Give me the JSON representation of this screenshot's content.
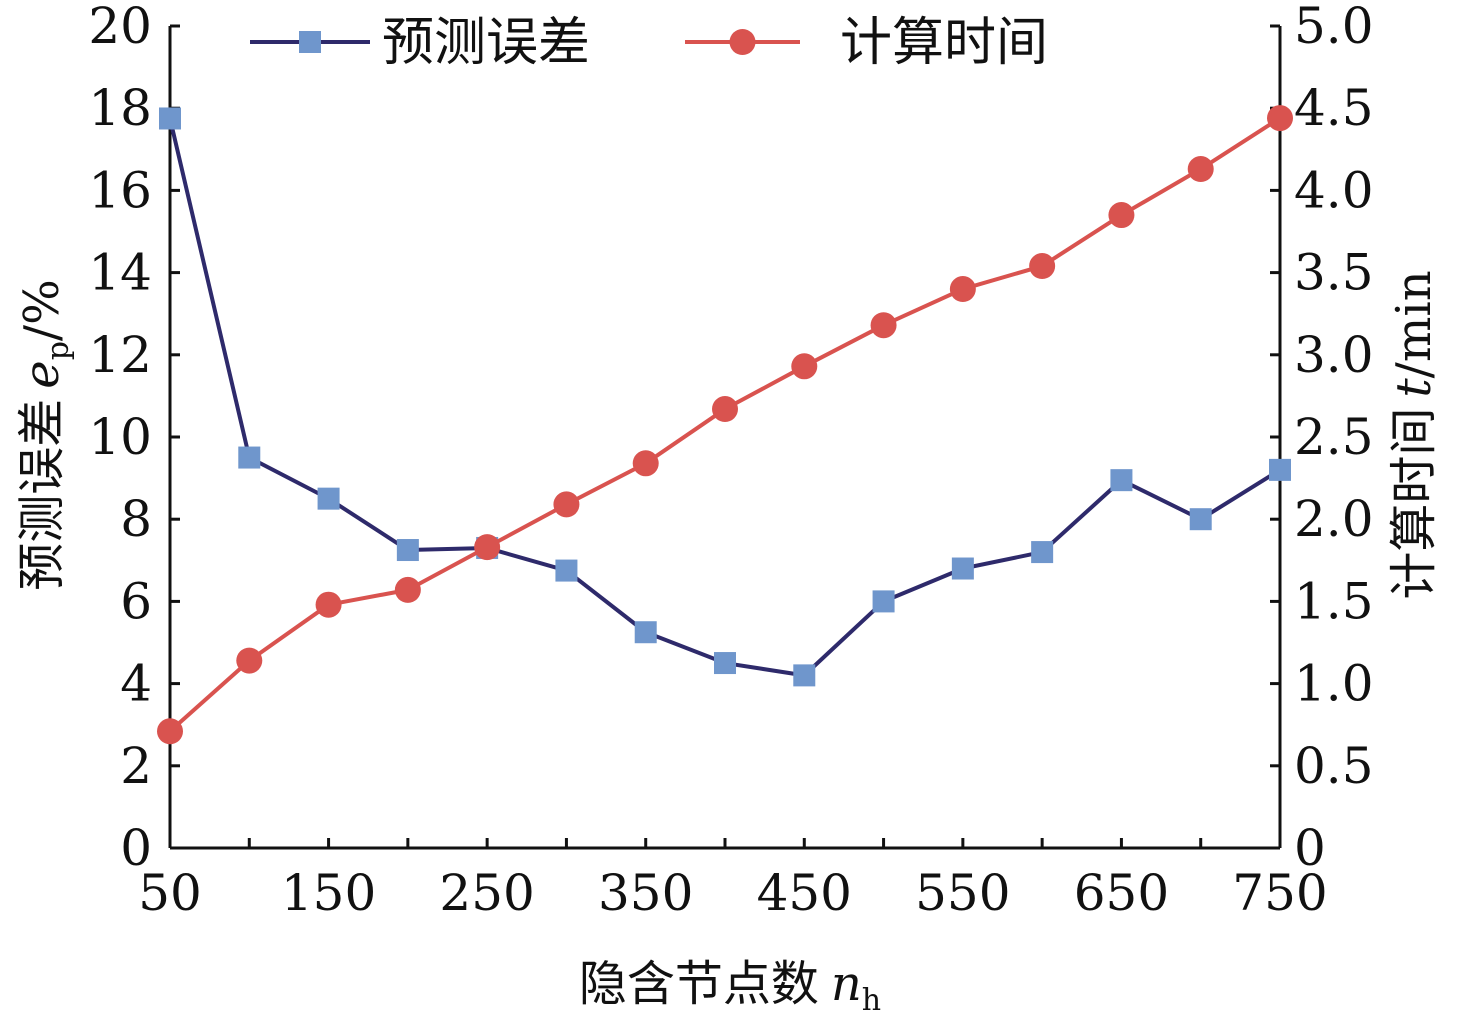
{
  "chart_data": {
    "type": "line",
    "x": [
      50,
      100,
      150,
      200,
      250,
      300,
      350,
      400,
      450,
      500,
      550,
      600,
      650,
      700,
      750
    ],
    "x_tick_labels": [
      "50",
      "150",
      "250",
      "350",
      "450",
      "550",
      "650",
      "750"
    ],
    "xlim": [
      50,
      750
    ],
    "xlabel": {
      "text": "隐含节点数",
      "symbol": "n",
      "subscript": "h"
    },
    "ylabel_left": {
      "text": "预测误差",
      "symbol": "e",
      "subscript": "p",
      "unit": "/%"
    },
    "ylabel_right": {
      "text": "计算时间",
      "symbol": "t",
      "unit": "/min"
    },
    "ylim_left": [
      0,
      20
    ],
    "ylim_right": [
      0,
      5.0
    ],
    "y_ticks_left": [
      "0",
      "2",
      "4",
      "6",
      "8",
      "10",
      "12",
      "14",
      "16",
      "18",
      "20"
    ],
    "y_ticks_right": [
      "0",
      "0.5",
      "1.0",
      "1.5",
      "2.0",
      "2.5",
      "3.0",
      "3.5",
      "4.0",
      "4.5",
      "5.0"
    ],
    "series": [
      {
        "name": "预测误差",
        "axis": "left",
        "marker": "square",
        "line_color": "#2e2a6b",
        "marker_color": "#6f96cc",
        "values": [
          17.75,
          9.5,
          8.5,
          7.25,
          7.3,
          6.75,
          5.25,
          4.5,
          4.2,
          6.0,
          6.8,
          7.2,
          8.95,
          8.0,
          9.2
        ]
      },
      {
        "name": "计算时间",
        "axis": "right",
        "marker": "circle",
        "line_color": "#d9534f",
        "marker_color": "#d9534f",
        "values": [
          0.71,
          1.14,
          1.48,
          1.57,
          1.83,
          2.09,
          2.34,
          2.67,
          2.93,
          3.18,
          3.4,
          3.54,
          3.85,
          4.13,
          4.44
        ]
      }
    ],
    "legend": "top",
    "grid": false
  }
}
